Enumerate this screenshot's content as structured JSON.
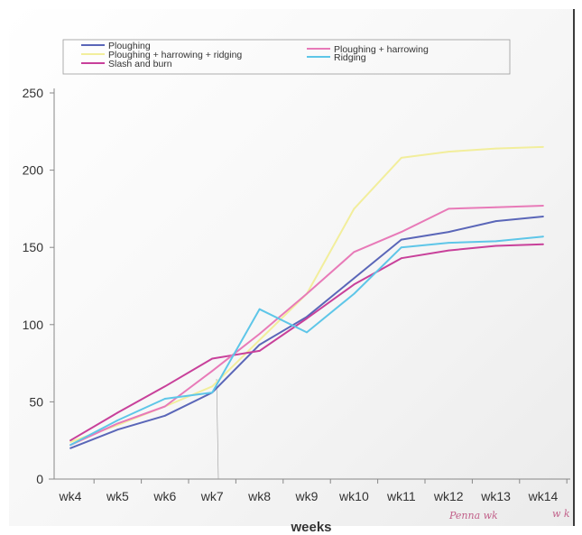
{
  "chart_data": {
    "type": "line",
    "title": "",
    "xlabel": "weeks",
    "ylabel": "",
    "categories": [
      "wk4",
      "wk5",
      "wk6",
      "wk7",
      "wk8",
      "wk9",
      "wk10",
      "wk11",
      "wk12",
      "wk13",
      "wk14"
    ],
    "ylim": [
      0,
      250
    ],
    "yticks": [
      0,
      50,
      100,
      150,
      200,
      250
    ],
    "grid": false,
    "legend_position": "top",
    "series": [
      {
        "name": "Ploughing",
        "color": "#5a66b8",
        "values": [
          20,
          32,
          41,
          56,
          87,
          105,
          130,
          155,
          160,
          167,
          170
        ]
      },
      {
        "name": "Ploughing + harrowing + ridging",
        "color": "#f2ee9c",
        "values": [
          24,
          35,
          47,
          60,
          90,
          120,
          175,
          208,
          212,
          214,
          215
        ]
      },
      {
        "name": "Slash and burn",
        "color": "#c8409a",
        "values": [
          25,
          43,
          60,
          78,
          83,
          104,
          126,
          143,
          148,
          151,
          152
        ]
      },
      {
        "name": "Ploughing + harrowing",
        "color": "#e87ab8",
        "values": [
          22,
          36,
          47,
          70,
          94,
          120,
          147,
          160,
          175,
          176,
          177
        ]
      },
      {
        "name": "Ridging",
        "color": "#5ec6e8",
        "values": [
          22,
          38,
          52,
          56,
          110,
          95,
          120,
          150,
          153,
          154,
          157
        ]
      }
    ]
  },
  "annotations": {
    "handwriting_1": "Penna wk",
    "handwriting_2": "w k"
  }
}
